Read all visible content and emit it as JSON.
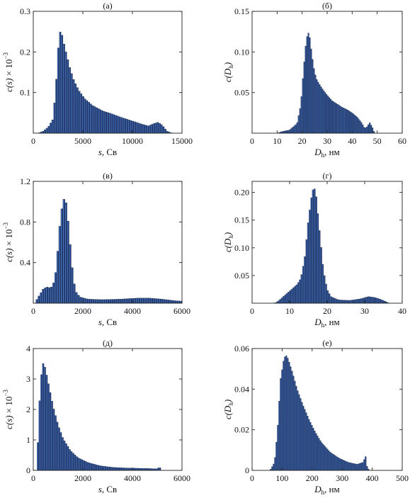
{
  "chart_data": [
    {
      "type": "bar",
      "title": "(а)",
      "xlabel_var": "s",
      "xlabel_unit": ", Св",
      "ylabel_var": "c(s)",
      "ylabel_suffix": " × 10",
      "ylabel_exp": "−3",
      "xlim": [
        0,
        15000
      ],
      "ylim": [
        0,
        0.3
      ],
      "xticks": [
        0,
        5000,
        10000,
        15000
      ],
      "xtick_labels": [
        "0",
        "5000",
        "10000",
        "15000"
      ],
      "yticks": [
        0.1,
        0.2,
        0.3
      ],
      "ytick_labels": [
        "0.1",
        "0.2",
        "0.3"
      ],
      "grid": false,
      "points": [
        [
          500,
          0
        ],
        [
          1000,
          0.005
        ],
        [
          1500,
          0.015
        ],
        [
          2000,
          0.035
        ],
        [
          2300,
          0.12
        ],
        [
          2600,
          0.24
        ],
        [
          2800,
          0.255
        ],
        [
          3000,
          0.23
        ],
        [
          3300,
          0.2
        ],
        [
          3700,
          0.16
        ],
        [
          4100,
          0.13
        ],
        [
          4600,
          0.105
        ],
        [
          5200,
          0.085
        ],
        [
          6000,
          0.068
        ],
        [
          7000,
          0.055
        ],
        [
          8000,
          0.047
        ],
        [
          9000,
          0.038
        ],
        [
          10000,
          0.03
        ],
        [
          11000,
          0.022
        ],
        [
          11600,
          0.018
        ],
        [
          12200,
          0.024
        ],
        [
          12600,
          0.027
        ],
        [
          13000,
          0.02
        ],
        [
          13500,
          0.005
        ],
        [
          14000,
          0
        ]
      ]
    },
    {
      "type": "bar",
      "title": "(б)",
      "xlabel_var": "D",
      "xlabel_sub": "h",
      "xlabel_unit": ", нм",
      "ylabel_var": "c(D",
      "ylabel_sub": "h",
      "ylabel_close": ")",
      "xlim": [
        0,
        60
      ],
      "ylim": [
        0,
        0.15
      ],
      "xticks": [
        0,
        10,
        20,
        30,
        40,
        50,
        60
      ],
      "xtick_labels": [
        "0",
        "10",
        "20",
        "30",
        "40",
        "50",
        "60"
      ],
      "yticks": [
        0.05,
        0.1,
        0.15
      ],
      "ytick_labels": [
        "0.05",
        "0.10",
        "0.15"
      ],
      "grid": false,
      "points": [
        [
          10,
          0
        ],
        [
          12,
          0.002
        ],
        [
          15,
          0.004
        ],
        [
          18,
          0.012
        ],
        [
          19.5,
          0.035
        ],
        [
          20.5,
          0.075
        ],
        [
          21.5,
          0.11
        ],
        [
          22.3,
          0.125
        ],
        [
          23,
          0.12
        ],
        [
          24,
          0.095
        ],
        [
          25,
          0.075
        ],
        [
          26,
          0.065
        ],
        [
          28,
          0.055
        ],
        [
          30,
          0.047
        ],
        [
          32,
          0.04
        ],
        [
          34,
          0.036
        ],
        [
          36,
          0.032
        ],
        [
          38,
          0.029
        ],
        [
          40,
          0.025
        ],
        [
          42,
          0.02
        ],
        [
          44,
          0.012
        ],
        [
          45,
          0.006
        ],
        [
          46,
          0.008
        ],
        [
          47,
          0.013
        ],
        [
          48,
          0.008
        ],
        [
          49,
          0
        ]
      ]
    },
    {
      "type": "bar",
      "title": "(в)",
      "xlabel_var": "s",
      "xlabel_unit": ", Св",
      "ylabel_var": "c(s)",
      "ylabel_suffix": " × 10",
      "ylabel_exp": "−3",
      "xlim": [
        0,
        6000
      ],
      "ylim": [
        0,
        1.2
      ],
      "xticks": [
        0,
        2000,
        4000,
        6000
      ],
      "xtick_labels": [
        "0",
        "2000",
        "4000",
        "6000"
      ],
      "yticks": [
        0.4,
        0.8,
        1.2
      ],
      "ytick_labels": [
        "0.4",
        "0.8",
        "1.2"
      ],
      "grid": false,
      "points": [
        [
          100,
          0.02
        ],
        [
          250,
          0.08
        ],
        [
          400,
          0.14
        ],
        [
          550,
          0.16
        ],
        [
          700,
          0.15
        ],
        [
          800,
          0.18
        ],
        [
          900,
          0.3
        ],
        [
          1000,
          0.55
        ],
        [
          1100,
          0.85
        ],
        [
          1200,
          1.0
        ],
        [
          1280,
          1.05
        ],
        [
          1350,
          0.95
        ],
        [
          1450,
          0.7
        ],
        [
          1550,
          0.4
        ],
        [
          1650,
          0.2
        ],
        [
          1750,
          0.1
        ],
        [
          1900,
          0.06
        ],
        [
          2200,
          0.04
        ],
        [
          2800,
          0.035
        ],
        [
          3500,
          0.04
        ],
        [
          4200,
          0.05
        ],
        [
          4700,
          0.05
        ],
        [
          5200,
          0.04
        ],
        [
          5700,
          0.025
        ],
        [
          6000,
          0.02
        ]
      ]
    },
    {
      "type": "bar",
      "title": "(г)",
      "xlabel_var": "D",
      "xlabel_sub": "h",
      "xlabel_unit": ", нм",
      "ylabel_var": "c(D",
      "ylabel_sub": "h",
      "ylabel_close": ")",
      "xlim": [
        0,
        40
      ],
      "ylim": [
        0,
        0.22
      ],
      "xticks": [
        0,
        10,
        20,
        30,
        40
      ],
      "xtick_labels": [
        "0",
        "10",
        "20",
        "30",
        "40"
      ],
      "yticks": [
        0.05,
        0.1,
        0.15,
        0.2
      ],
      "ytick_labels": [
        "0.05",
        "0.10",
        "0.15",
        "0.20"
      ],
      "grid": false,
      "points": [
        [
          6,
          0
        ],
        [
          7,
          0.004
        ],
        [
          8,
          0.01
        ],
        [
          9,
          0.016
        ],
        [
          10,
          0.022
        ],
        [
          11,
          0.028
        ],
        [
          12,
          0.034
        ],
        [
          13,
          0.045
        ],
        [
          14,
          0.08
        ],
        [
          15,
          0.15
        ],
        [
          16,
          0.2
        ],
        [
          16.5,
          0.21
        ],
        [
          17,
          0.2
        ],
        [
          18,
          0.13
        ],
        [
          19,
          0.06
        ],
        [
          20,
          0.025
        ],
        [
          21,
          0.012
        ],
        [
          23,
          0.006
        ],
        [
          26,
          0.005
        ],
        [
          29,
          0.008
        ],
        [
          31,
          0.012
        ],
        [
          33,
          0.01
        ],
        [
          35,
          0.005
        ],
        [
          36.5,
          0
        ]
      ]
    },
    {
      "type": "bar",
      "title": "(д)",
      "xlabel_var": "s",
      "xlabel_unit": ", Св",
      "ylabel_var": "c(s)",
      "ylabel_suffix": " × 10",
      "ylabel_exp": "−3",
      "xlim": [
        0,
        6000
      ],
      "ylim": [
        0,
        4
      ],
      "xticks": [
        0,
        2000,
        4000,
        6000
      ],
      "xtick_labels": [
        "0",
        "2000",
        "4000",
        "6000"
      ],
      "yticks": [
        0,
        1,
        2,
        3,
        4
      ],
      "ytick_labels": [
        "0",
        "1",
        "2",
        "3",
        "4"
      ],
      "grid": false,
      "points": [
        [
          150,
          0.2
        ],
        [
          250,
          2.2
        ],
        [
          350,
          3.4
        ],
        [
          420,
          3.55
        ],
        [
          500,
          3.3
        ],
        [
          650,
          2.7
        ],
        [
          800,
          2.1
        ],
        [
          1000,
          1.5
        ],
        [
          1200,
          1.05
        ],
        [
          1500,
          0.65
        ],
        [
          1800,
          0.42
        ],
        [
          2200,
          0.26
        ],
        [
          2700,
          0.15
        ],
        [
          3200,
          0.1
        ],
        [
          3700,
          0.08
        ],
        [
          4200,
          0.07
        ],
        [
          4700,
          0.06
        ],
        [
          5000,
          0.05
        ],
        [
          5100,
          0.12
        ],
        [
          5150,
          0
        ]
      ]
    },
    {
      "type": "bar",
      "title": "(е)",
      "xlabel_var": "D",
      "xlabel_sub": "h",
      "xlabel_unit": ", нм",
      "ylabel_var": "c(D",
      "ylabel_sub": "h",
      "ylabel_close": ")",
      "xlim": [
        0,
        500
      ],
      "ylim": [
        0,
        0.06
      ],
      "xticks": [
        0,
        100,
        200,
        300,
        400,
        500
      ],
      "xtick_labels": [
        "0",
        "100",
        "200",
        "300",
        "400",
        "500"
      ],
      "yticks": [
        0,
        0.02,
        0.04,
        0.06
      ],
      "ytick_labels": [
        "0",
        "0.02",
        "0.04",
        "0.06"
      ],
      "grid": false,
      "points": [
        [
          60,
          0
        ],
        [
          75,
          0.004
        ],
        [
          85,
          0.02
        ],
        [
          95,
          0.045
        ],
        [
          105,
          0.054
        ],
        [
          112,
          0.057
        ],
        [
          120,
          0.055
        ],
        [
          135,
          0.048
        ],
        [
          150,
          0.04
        ],
        [
          170,
          0.032
        ],
        [
          190,
          0.025
        ],
        [
          210,
          0.019
        ],
        [
          230,
          0.014
        ],
        [
          260,
          0.009
        ],
        [
          290,
          0.006
        ],
        [
          320,
          0.004
        ],
        [
          350,
          0.003
        ],
        [
          370,
          0.004
        ],
        [
          378,
          0.007
        ],
        [
          383,
          0.002
        ],
        [
          390,
          0
        ]
      ]
    }
  ]
}
